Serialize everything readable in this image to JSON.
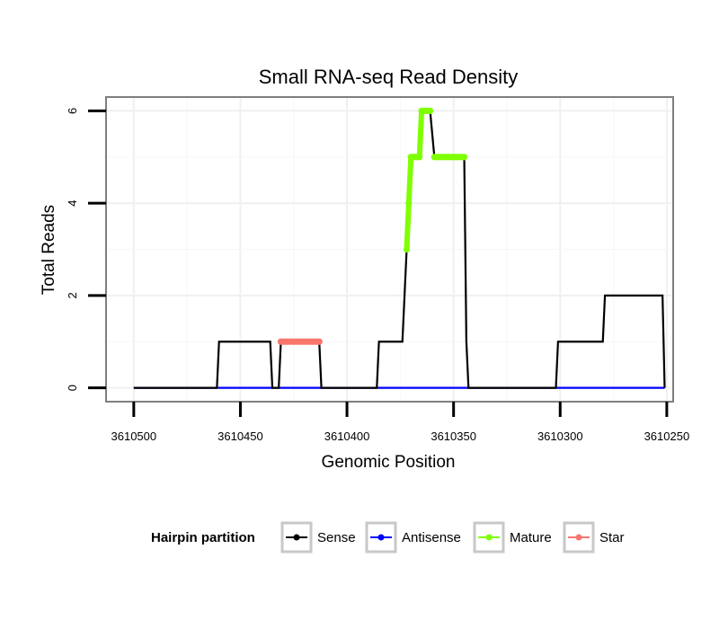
{
  "chart_data": {
    "type": "line",
    "title": "Small RNA-seq Read Density",
    "xlabel": "Genomic Position",
    "ylabel": "Total Reads",
    "xlim": [
      3610513,
      3610247
    ],
    "x_reversed": true,
    "ylim": [
      -0.3,
      6.3
    ],
    "grid": true,
    "x_ticks": [
      3610500,
      3610450,
      3610400,
      3610350,
      3610300,
      3610250
    ],
    "x_tick_labels": [
      "3610500",
      "3610450",
      "3610400",
      "3610350",
      "3610300",
      "3610250"
    ],
    "y_ticks": [
      0,
      2,
      4,
      6
    ],
    "y_tick_labels": [
      "0",
      "2",
      "4",
      "6"
    ],
    "series": [
      {
        "name": "Sense",
        "color": "#000000",
        "points": [
          [
            3610500,
            0
          ],
          [
            3610461,
            0
          ],
          [
            3610460,
            1
          ],
          [
            3610436,
            1
          ],
          [
            3610435,
            0
          ],
          [
            3610432,
            0
          ],
          [
            3610431,
            1
          ],
          [
            3610413,
            1
          ],
          [
            3610412,
            0
          ],
          [
            3610386,
            0
          ],
          [
            3610385,
            1
          ],
          [
            3610374,
            1
          ],
          [
            3610372,
            3
          ],
          [
            3610371,
            4
          ],
          [
            3610370,
            5
          ],
          [
            3610366,
            5
          ],
          [
            3610365,
            6
          ],
          [
            3610361,
            6
          ],
          [
            3610359,
            5
          ],
          [
            3610345,
            5
          ],
          [
            3610344,
            1
          ],
          [
            3610343,
            0
          ],
          [
            3610302,
            0
          ],
          [
            3610301,
            1
          ],
          [
            3610280,
            1
          ],
          [
            3610279,
            2
          ],
          [
            3610252,
            2
          ],
          [
            3610251,
            0
          ]
        ]
      },
      {
        "name": "Antisense",
        "color": "#0000ff",
        "points": [
          [
            3610500,
            0
          ],
          [
            3610251,
            0
          ]
        ]
      },
      {
        "name": "Mature",
        "color": "#7fff00",
        "points": [
          [
            3610372,
            3
          ],
          [
            3610371,
            4
          ],
          [
            3610370,
            5
          ],
          [
            3610369,
            5
          ],
          [
            3610368,
            5
          ],
          [
            3610367,
            5
          ],
          [
            3610366,
            5
          ],
          [
            3610365,
            6
          ],
          [
            3610364,
            6
          ],
          [
            3610363,
            6
          ],
          [
            3610362,
            6
          ],
          [
            3610361,
            6
          ],
          [
            3610359,
            5
          ],
          [
            3610358,
            5
          ],
          [
            3610357,
            5
          ],
          [
            3610356,
            5
          ],
          [
            3610355,
            5
          ],
          [
            3610354,
            5
          ],
          [
            3610353,
            5
          ],
          [
            3610352,
            5
          ],
          [
            3610351,
            5
          ],
          [
            3610350,
            5
          ],
          [
            3610349,
            5
          ],
          [
            3610348,
            5
          ],
          [
            3610347,
            5
          ],
          [
            3610346,
            5
          ],
          [
            3610345,
            5
          ]
        ]
      },
      {
        "name": "Star",
        "color": "#f8766d",
        "points": [
          [
            3610431,
            1
          ],
          [
            3610430,
            1
          ],
          [
            3610429,
            1
          ],
          [
            3610428,
            1
          ],
          [
            3610427,
            1
          ],
          [
            3610426,
            1
          ],
          [
            3610425,
            1
          ],
          [
            3610424,
            1
          ],
          [
            3610423,
            1
          ],
          [
            3610422,
            1
          ],
          [
            3610421,
            1
          ],
          [
            3610420,
            1
          ],
          [
            3610419,
            1
          ],
          [
            3610418,
            1
          ],
          [
            3610417,
            1
          ],
          [
            3610416,
            1
          ],
          [
            3610415,
            1
          ],
          [
            3610414,
            1
          ],
          [
            3610413,
            1
          ]
        ]
      }
    ],
    "legend": {
      "title": "Hairpin partition",
      "position": "bottom",
      "entries": [
        {
          "label": "Sense",
          "color": "#000000"
        },
        {
          "label": "Antisense",
          "color": "#0000ff"
        },
        {
          "label": "Mature",
          "color": "#7fff00"
        },
        {
          "label": "Star",
          "color": "#f8766d"
        }
      ]
    }
  }
}
